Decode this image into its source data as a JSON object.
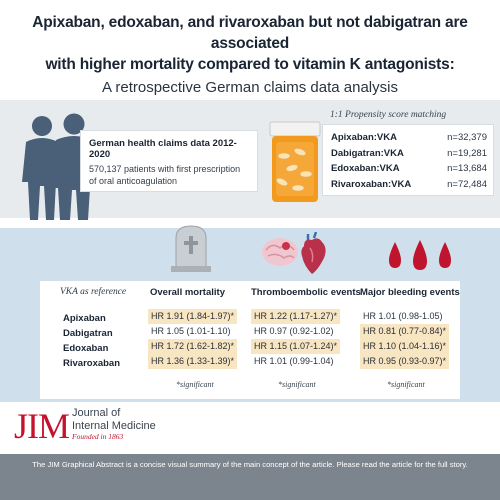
{
  "header": {
    "title_line1": "Apixaban, edoxaban, and rivaroxaban but not dabigatran are associated",
    "title_line2": "with higher mortality compared to vitamin K antagonists:",
    "subtitle": "A retrospective German claims data analysis"
  },
  "study": {
    "title": "German health claims data 2012-2020",
    "line1": "570,137 patients with first prescription",
    "line2": "of oral anticoagulation"
  },
  "matching": {
    "label": "1:1 Propensity score matching",
    "rows": [
      {
        "pair": "Apixaban:VKA",
        "n": "n=32,379"
      },
      {
        "pair": "Dabigatran:VKA",
        "n": "n=19,281"
      },
      {
        "pair": "Edoxaban:VKA",
        "n": "n=13,684"
      },
      {
        "pair": "Rivaroxaban:VKA",
        "n": "n=72,484"
      }
    ]
  },
  "results": {
    "reference_label": "VKA as reference",
    "drugs": [
      "Apixaban",
      "Dabigatran",
      "Edoxaban",
      "Rivaroxaban"
    ],
    "columns": [
      {
        "heading": "Overall mortality",
        "icon": "gravestone-icon",
        "values": [
          "HR 1.91 (1.84-1.97)*",
          "HR 1.05 (1.01-1.10)",
          "HR 1.72 (1.62-1.82)*",
          "HR 1.36 (1.33-1.39)*"
        ],
        "significant": [
          true,
          false,
          true,
          true
        ]
      },
      {
        "heading": "Thromboembolic events",
        "icon": "brain-heart-icon",
        "values": [
          "HR 1.22 (1.17-1.27)*",
          "HR 0.97 (0.92-1.02)",
          "HR 1.15 (1.07-1.24)*",
          "HR 1.01 (0.99-1.04)"
        ],
        "significant": [
          true,
          false,
          true,
          false
        ]
      },
      {
        "heading": "Major bleeding events",
        "icon": "blood-drops-icon",
        "values": [
          "HR 1.01 (0.98-1.05)",
          "HR 0.81 (0.77-0.84)*",
          "HR 1.10 (1.04-1.16)*",
          "HR 0.95 (0.93-0.97)*"
        ],
        "significant": [
          false,
          true,
          true,
          true
        ]
      }
    ],
    "significance_note": "*significant"
  },
  "journal": {
    "logo": "JIM",
    "name_line1": "Journal of",
    "name_line2": "Internal Medicine",
    "founded": "Founded in 1863"
  },
  "footer": {
    "text": "The JIM Graphical Abstract is a concise visual summary of the main concept of the article. Please read the article for the full story."
  },
  "colors": {
    "highlight": "#f8e5c2",
    "blue_band": "#cfe0ec",
    "grey_band": "#e7ebee",
    "jim_red": "#c4122f"
  }
}
